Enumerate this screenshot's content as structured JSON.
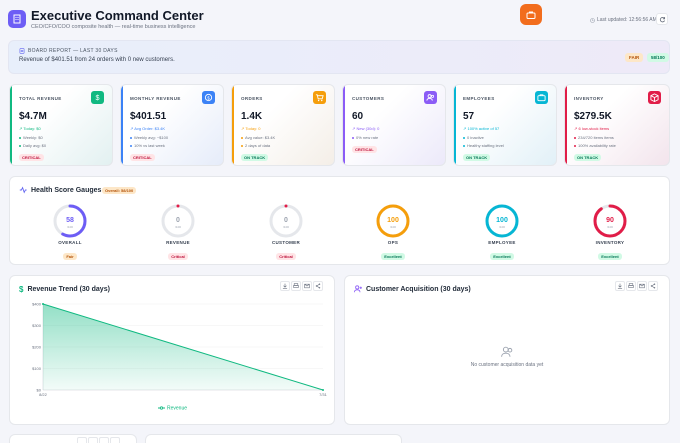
{
  "header": {
    "title": "Executive Command Center",
    "subtitle": "CEO/CFO/COO composite health — real-time business intelligence",
    "last_updated": "Last updated: 12:56:56 AM"
  },
  "report": {
    "heading": "BOARD REPORT — LAST 30 DAYS",
    "text": "Revenue of $401.51 from 24 orders with 0 new customers.",
    "status": "FAIR",
    "score": "58/100"
  },
  "kpis": [
    {
      "label": "TOTAL REVENUE",
      "value": "$4.7M",
      "l1": "↗ Today: $0",
      "l2": "Weekly: $0",
      "l3": "Daily avg: $0",
      "status": "CRITICAL",
      "color": "#10b981",
      "icon": "dollar-icon"
    },
    {
      "label": "MONTHLY REVENUE",
      "value": "$401.51",
      "l1": "↗ Avg Order: $3.4K",
      "l2": "Weekly avg: ~$100",
      "l3": "10% vs last week",
      "status": "CRITICAL",
      "color": "#3b82f6",
      "icon": "money-icon"
    },
    {
      "label": "ORDERS",
      "value": "1.4K",
      "l1": "↗ Today: 0",
      "l2": "Avg value: $3.4K",
      "l3": "2 days of data",
      "status": "ON TRACK",
      "color": "#f59e0b",
      "icon": "cart-icon"
    },
    {
      "label": "CUSTOMERS",
      "value": "60",
      "l1": "↗ New (30d): 0",
      "l2": "0% new rate",
      "l3": "",
      "status": "CRITICAL",
      "color": "#8b5cf6",
      "icon": "users-icon"
    },
    {
      "label": "EMPLOYEES",
      "value": "57",
      "l1": "↗ 100% active of 57",
      "l2": "0 inactive",
      "l3": "Healthy staffing level",
      "status": "ON TRACK",
      "color": "#06b6d4",
      "icon": "briefcase-icon"
    },
    {
      "label": "INVENTORY",
      "value": "$279.5K",
      "l1": "↗ 6 low-stock items",
      "l2": "234/720 items items",
      "l3": "100% availability rate",
      "status": "ON TRACK",
      "color": "#e11d48",
      "icon": "box-icon"
    }
  ],
  "gauges_panel": {
    "title": "Health Score Gauges",
    "overall": "Overall: 58/100",
    "gauges": [
      {
        "name": "OVERALL",
        "value": 58,
        "unit": "/100",
        "status": "Fair",
        "color": "#6d5df5"
      },
      {
        "name": "REVENUE",
        "value": 0,
        "unit": "/100",
        "status": "Critical",
        "color": "#e11d48"
      },
      {
        "name": "CUSTOMER",
        "value": 0,
        "unit": "/100",
        "status": "Critical",
        "color": "#e11d48"
      },
      {
        "name": "OPS",
        "value": 100,
        "unit": "/100",
        "status": "Excellent",
        "color": "#f59e0b"
      },
      {
        "name": "EMPLOYEE",
        "value": 100,
        "unit": "/100",
        "status": "Excellent",
        "color": "#06b6d4"
      },
      {
        "name": "INVENTORY",
        "value": 90,
        "unit": "/100",
        "status": "Excellent",
        "color": "#e11d48"
      }
    ]
  },
  "revenue_panel": {
    "title": "Revenue Trend (30 days)"
  },
  "acquisition_panel": {
    "title": "Customer Acquisition (30 days)",
    "empty": "No customer acquisition data yet"
  },
  "chart_data": {
    "type": "area",
    "title": "Revenue Trend (30 days)",
    "x": [
      "8/22",
      "7/31"
    ],
    "series": [
      {
        "name": "Revenue",
        "values": [
          400,
          0
        ]
      }
    ],
    "ylim": [
      0,
      400
    ],
    "yticks": [
      "$400",
      "$300",
      "$200",
      "$100",
      "$0"
    ],
    "legend": "bottom",
    "color": "#10b981"
  }
}
